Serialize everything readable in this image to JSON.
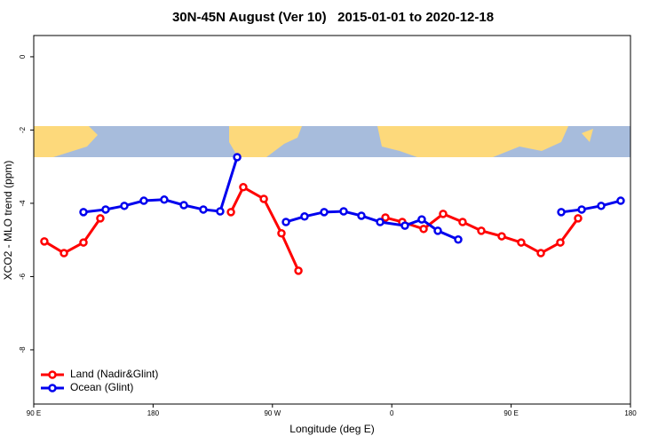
{
  "chart_data": {
    "type": "line",
    "title": "30N-45N August (Ver 10)   2015-01-01 to 2020-12-18",
    "x_label": "Longitude (deg E)",
    "y_label": "XCO2 - MLO trend (ppm)",
    "xlim": [
      90,
      540
    ],
    "ylim": [
      -9.48,
      0.58
    ],
    "xticks": [
      {
        "value": 90,
        "label": "90 E"
      },
      {
        "value": 180,
        "label": "180"
      },
      {
        "value": 270,
        "label": "90 W"
      },
      {
        "value": 360,
        "label": "0"
      },
      {
        "value": 450,
        "label": "90 E"
      },
      {
        "value": 540,
        "label": "180"
      }
    ],
    "yticks": [
      0,
      -2,
      -4,
      -6,
      -8
    ],
    "legend_position": "bottom-left",
    "series": [
      {
        "name": "Land (Nadir&Glint)",
        "color": "#ff0000",
        "x": [
          98,
          112.8,
          127.5,
          140.2,
          null,
          238.7,
          248,
          263.5,
          276.8,
          289.6,
          null,
          355.2,
          367.9,
          384,
          398.7,
          413.4,
          427.5,
          442.9,
          457.6,
          472.4,
          487.1,
          500.5
        ],
        "values": [
          -5.04,
          -5.36,
          -5.07,
          -4.41,
          null,
          -4.24,
          -3.56,
          -3.88,
          -4.82,
          -5.84,
          null,
          -4.39,
          -4.51,
          -4.7,
          -4.29,
          -4.51,
          -4.75,
          -4.9,
          -5.07,
          -5.36,
          -5.07,
          -4.41
        ]
      },
      {
        "name": "Ocean (Glint)",
        "color": "#0000ee",
        "x": [
          127.5,
          144.2,
          158.3,
          173,
          188.4,
          203.2,
          217.9,
          230.6,
          243.4,
          null,
          280.2,
          294.2,
          309,
          323.7,
          337.1,
          351.2,
          369.9,
          382.6,
          394.7,
          410.1,
          null,
          487.8,
          503.2,
          517.9,
          532.6
        ],
        "values": [
          -4.24,
          -4.17,
          -4.07,
          -3.93,
          -3.9,
          -4.05,
          -4.17,
          -4.22,
          -2.74,
          null,
          -4.51,
          -4.36,
          -4.24,
          -4.22,
          -4.34,
          -4.51,
          -4.61,
          -4.44,
          -4.75,
          -4.99,
          null,
          -4.24,
          -4.17,
          -4.07,
          -3.93
        ]
      }
    ]
  }
}
